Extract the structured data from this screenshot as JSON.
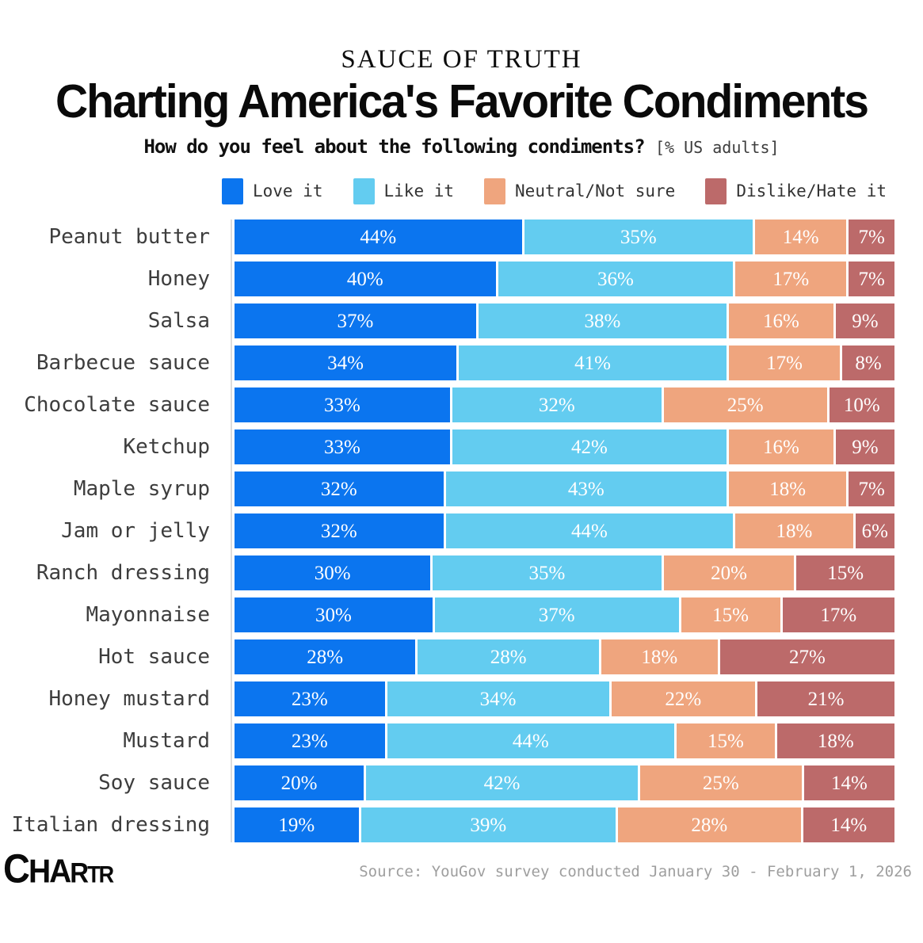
{
  "header": {
    "kicker": "SAUCE OF TRUTH",
    "title": "Charting America's Favorite Condiments",
    "subtitle": "How do you feel about the following condiments?",
    "subtitle_note": "[% US adults]"
  },
  "legend": [
    {
      "label": "Love it",
      "color": "#0b75ef"
    },
    {
      "label": "Like it",
      "color": "#63ccf0"
    },
    {
      "label": "Neutral/Not sure",
      "color": "#efa57e"
    },
    {
      "label": "Dislike/Hate it",
      "color": "#bc6a6a"
    }
  ],
  "chart_data": {
    "type": "bar",
    "orientation": "horizontal",
    "stacked": true,
    "value_suffix": "%",
    "xlim": [
      0,
      100
    ],
    "grid": false,
    "legend_position": "top",
    "title": "Charting America's Favorite Condiments",
    "subtitle": "How do you feel about the following condiments? [% US adults]",
    "categories": [
      "Peanut butter",
      "Honey",
      "Salsa",
      "Barbecue sauce",
      "Chocolate sauce",
      "Ketchup",
      "Maple syrup",
      "Jam or jelly",
      "Ranch dressing",
      "Mayonnaise",
      "Hot sauce",
      "Honey mustard",
      "Mustard",
      "Soy sauce",
      "Italian dressing"
    ],
    "series": [
      {
        "name": "Love it",
        "color": "#0b75ef",
        "values": [
          44,
          40,
          37,
          34,
          33,
          33,
          32,
          32,
          30,
          30,
          28,
          23,
          23,
          20,
          19
        ]
      },
      {
        "name": "Like it",
        "color": "#63ccf0",
        "values": [
          35,
          36,
          38,
          41,
          32,
          42,
          43,
          44,
          35,
          37,
          28,
          34,
          44,
          42,
          39
        ]
      },
      {
        "name": "Neutral/Not sure",
        "color": "#efa57e",
        "values": [
          14,
          17,
          16,
          17,
          25,
          16,
          18,
          18,
          20,
          15,
          18,
          22,
          15,
          25,
          28
        ]
      },
      {
        "name": "Dislike/Hate it",
        "color": "#bc6a6a",
        "values": [
          7,
          7,
          9,
          8,
          10,
          9,
          7,
          6,
          15,
          17,
          27,
          21,
          18,
          14,
          14
        ]
      }
    ]
  },
  "footer": {
    "logo_letters": [
      "C",
      "H",
      "A",
      "R",
      "T",
      "R"
    ],
    "source": "Source: YouGov survey conducted January 30 - February 1, 2026"
  }
}
